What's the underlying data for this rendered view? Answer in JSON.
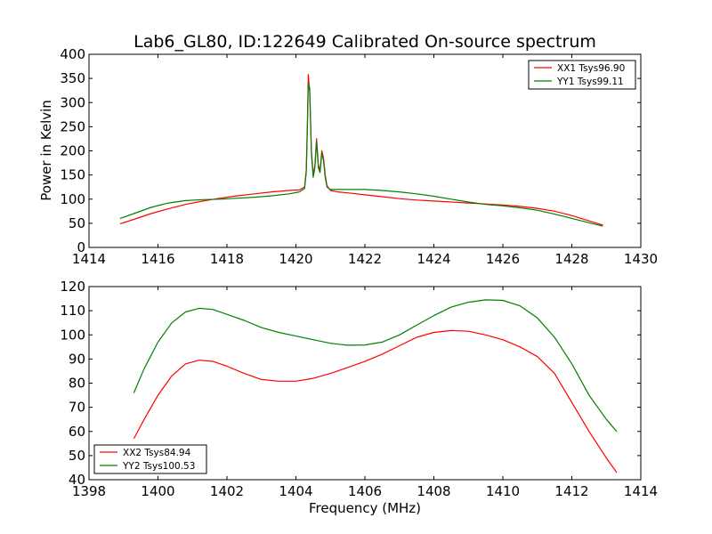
{
  "figure": {
    "title": "Lab6_GL80, ID:122649 Calibrated On-source spectrum"
  },
  "chart_data": [
    {
      "type": "line",
      "title": "Lab6_GL80, ID:122649 Calibrated On-source spectrum",
      "xlabel": "",
      "ylabel": "Power in Kelvin",
      "xlim": [
        1414,
        1430
      ],
      "ylim": [
        0,
        400
      ],
      "xticks": [
        1414,
        1416,
        1418,
        1420,
        1422,
        1424,
        1426,
        1428,
        1430
      ],
      "yticks": [
        0,
        50,
        100,
        150,
        200,
        250,
        300,
        350,
        400
      ],
      "legend_position": "top-right",
      "series": [
        {
          "name": "XX1 Tsys96.90",
          "color": "#ff0000",
          "x": [
            1414.9,
            1415.3,
            1415.8,
            1416.3,
            1416.8,
            1417.3,
            1417.8,
            1418.3,
            1418.8,
            1419.3,
            1419.8,
            1420.1,
            1420.25,
            1420.3,
            1420.33,
            1420.36,
            1420.4,
            1420.45,
            1420.5,
            1420.55,
            1420.6,
            1420.65,
            1420.7,
            1420.75,
            1420.8,
            1420.85,
            1420.9,
            1421.0,
            1421.2,
            1421.5,
            1422.0,
            1422.5,
            1423.0,
            1423.5,
            1424.0,
            1424.5,
            1425.0,
            1425.5,
            1426.0,
            1426.5,
            1427.0,
            1427.5,
            1428.0,
            1428.5,
            1428.9
          ],
          "y": [
            49,
            58,
            70,
            80,
            89,
            96,
            102,
            107,
            111,
            115,
            118,
            119,
            125,
            160,
            250,
            358,
            320,
            200,
            150,
            170,
            225,
            170,
            160,
            200,
            185,
            150,
            128,
            118,
            115,
            113,
            109,
            105,
            101,
            98,
            96,
            94,
            92,
            90,
            88,
            85,
            81,
            75,
            66,
            55,
            46
          ]
        },
        {
          "name": "YY1 Tsys99.11",
          "color": "#008000",
          "x": [
            1414.9,
            1415.3,
            1415.8,
            1416.3,
            1416.8,
            1417.3,
            1417.8,
            1418.3,
            1418.8,
            1419.3,
            1419.8,
            1420.1,
            1420.25,
            1420.3,
            1420.33,
            1420.36,
            1420.4,
            1420.45,
            1420.5,
            1420.55,
            1420.6,
            1420.65,
            1420.7,
            1420.75,
            1420.8,
            1420.85,
            1420.9,
            1421.0,
            1421.2,
            1421.5,
            1422.0,
            1422.5,
            1423.0,
            1423.5,
            1424.0,
            1424.5,
            1425.0,
            1425.5,
            1426.0,
            1426.5,
            1427.0,
            1427.5,
            1428.0,
            1428.5,
            1428.9
          ],
          "y": [
            60,
            70,
            83,
            92,
            97,
            99,
            100,
            102,
            104,
            107,
            111,
            115,
            122,
            155,
            240,
            340,
            330,
            195,
            145,
            165,
            220,
            165,
            155,
            195,
            180,
            145,
            125,
            120,
            120,
            120,
            120,
            118,
            115,
            111,
            106,
            100,
            94,
            89,
            86,
            82,
            77,
            69,
            60,
            51,
            44
          ]
        }
      ]
    },
    {
      "type": "line",
      "title": "",
      "xlabel": "Frequency (MHz)",
      "ylabel": "",
      "xlim": [
        1398,
        1414
      ],
      "ylim": [
        40,
        120
      ],
      "xticks": [
        1398,
        1400,
        1402,
        1404,
        1406,
        1408,
        1410,
        1412,
        1414
      ],
      "yticks": [
        40,
        50,
        60,
        70,
        80,
        90,
        100,
        110,
        120
      ],
      "legend_position": "bottom-left",
      "series": [
        {
          "name": "XX2 Tsys84.94",
          "color": "#ff0000",
          "x": [
            1399.3,
            1399.6,
            1400.0,
            1400.4,
            1400.8,
            1401.2,
            1401.6,
            1402.0,
            1402.5,
            1403.0,
            1403.5,
            1404.0,
            1404.5,
            1405.0,
            1405.5,
            1406.0,
            1406.5,
            1407.0,
            1407.5,
            1408.0,
            1408.5,
            1409.0,
            1409.5,
            1410.0,
            1410.5,
            1411.0,
            1411.5,
            1412.0,
            1412.5,
            1413.0,
            1413.3
          ],
          "y": [
            57,
            65,
            75,
            83,
            88,
            89.5,
            89,
            87,
            84,
            81.5,
            80.8,
            80.8,
            82,
            84,
            86.5,
            89,
            92,
            95.5,
            99,
            101,
            101.8,
            101.5,
            100,
            98,
            95,
            91,
            84,
            72,
            60,
            49,
            43
          ]
        },
        {
          "name": "YY2 Tsys100.53",
          "color": "#008000",
          "x": [
            1399.3,
            1399.6,
            1400.0,
            1400.4,
            1400.8,
            1401.2,
            1401.6,
            1402.0,
            1402.5,
            1403.0,
            1403.5,
            1404.0,
            1404.5,
            1405.0,
            1405.5,
            1406.0,
            1406.5,
            1407.0,
            1407.5,
            1408.0,
            1408.5,
            1409.0,
            1409.5,
            1410.0,
            1410.5,
            1411.0,
            1411.5,
            1412.0,
            1412.5,
            1413.0,
            1413.3
          ],
          "y": [
            76,
            86,
            97,
            105,
            109.5,
            111,
            110.5,
            108.5,
            106,
            103,
            101,
            99.5,
            98,
            96.5,
            95.7,
            95.8,
            97,
            100,
            104,
            108,
            111.5,
            113.5,
            114.5,
            114.3,
            112,
            107,
            99,
            88,
            75,
            65,
            60
          ]
        }
      ]
    }
  ]
}
